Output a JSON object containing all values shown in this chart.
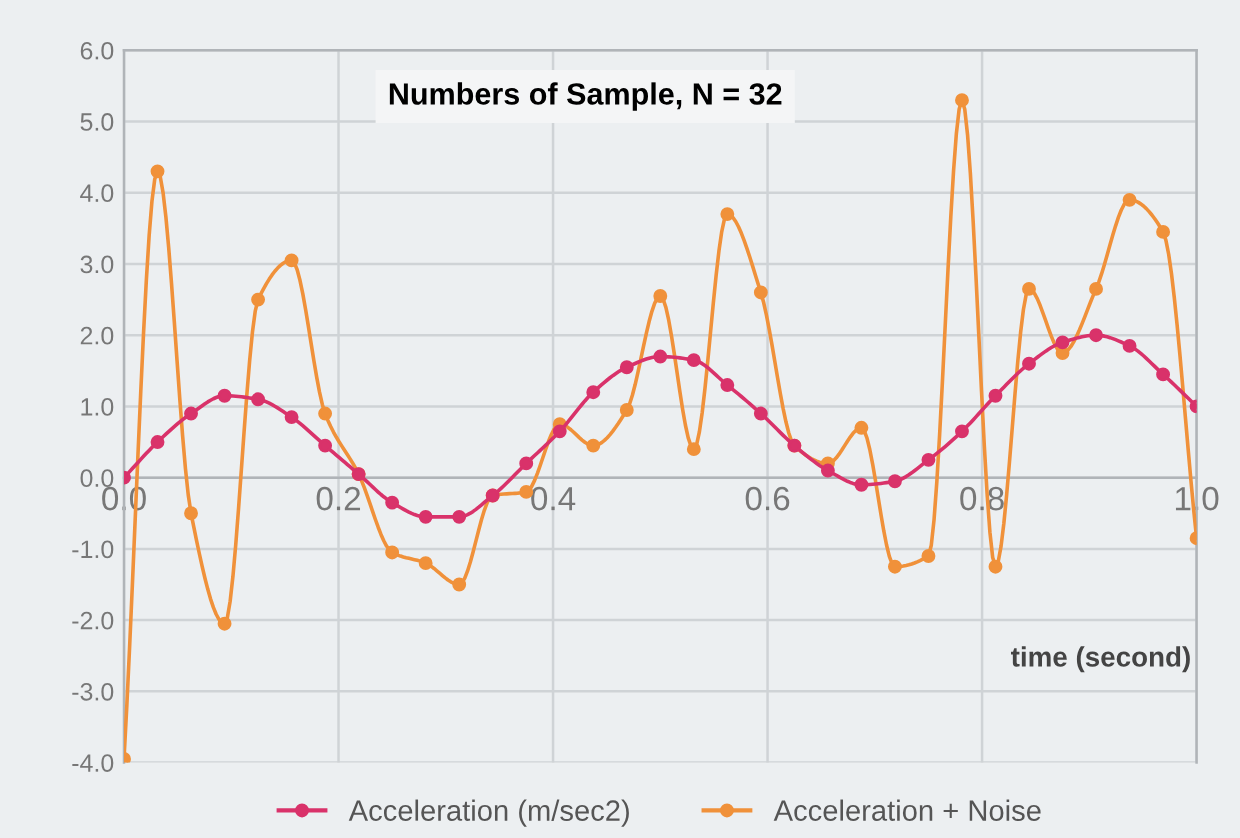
{
  "chart_data": {
    "type": "line",
    "title": "Numbers of Sample, N = 32",
    "xlabel": "time (second)",
    "x": [
      0,
      0.03125,
      0.0625,
      0.09375,
      0.125,
      0.15625,
      0.1875,
      0.21875,
      0.25,
      0.28125,
      0.3125,
      0.34375,
      0.375,
      0.40625,
      0.4375,
      0.46875,
      0.5,
      0.53125,
      0.5625,
      0.59375,
      0.625,
      0.65625,
      0.6875,
      0.71875,
      0.75,
      0.78125,
      0.8125,
      0.84375,
      0.875,
      0.90625,
      0.9375,
      0.96875,
      1.0
    ],
    "series": [
      {
        "name": "Acceleration (m/sec2)",
        "color": "#d9326a",
        "values": [
          0.0,
          0.5,
          0.9,
          1.15,
          1.1,
          0.85,
          0.45,
          0.05,
          -0.35,
          -0.55,
          -0.55,
          -0.25,
          0.2,
          0.65,
          1.2,
          1.55,
          1.7,
          1.65,
          1.3,
          0.9,
          0.45,
          0.1,
          -0.1,
          -0.05,
          0.25,
          0.65,
          1.15,
          1.6,
          1.9,
          2.0,
          1.85,
          1.45,
          1.0
        ]
      },
      {
        "name": "Acceleration + Noise",
        "color": "#f0913a",
        "values": [
          -3.95,
          4.3,
          -0.5,
          -2.05,
          2.5,
          3.05,
          0.9,
          0.05,
          -1.05,
          -1.2,
          -1.5,
          -0.25,
          -0.2,
          0.75,
          0.45,
          0.95,
          2.55,
          0.4,
          3.7,
          2.6,
          0.45,
          0.2,
          0.7,
          -1.25,
          -1.1,
          5.3,
          -1.25,
          2.65,
          1.75,
          2.65,
          3.9,
          3.45,
          -0.85
        ]
      }
    ],
    "xlim": [
      0,
      1.0
    ],
    "xticks": [
      {
        "value": 0,
        "label": "0.0"
      },
      0.2,
      0.4,
      0.6,
      0.8,
      {
        "value": 1.0,
        "label": "1.0"
      }
    ],
    "ylim": [
      -4,
      6
    ],
    "yticks": [
      {
        "value": -4,
        "label": "-4.0"
      },
      {
        "value": -3,
        "label": "-3.0"
      },
      {
        "value": -2,
        "label": "-2.0"
      },
      {
        "value": -1,
        "label": "-1.0"
      },
      {
        "value": 0,
        "label": "0.0"
      },
      {
        "value": 1,
        "label": "1.0"
      },
      {
        "value": 2,
        "label": "2.0"
      },
      {
        "value": 3,
        "label": "3.0"
      },
      {
        "value": 4,
        "label": "4.0"
      },
      {
        "value": 5,
        "label": "5.0"
      },
      {
        "value": 6,
        "label": "6.0"
      }
    ],
    "grid": true,
    "legend": "bottom",
    "marker": "circle",
    "line_style": "solid"
  }
}
